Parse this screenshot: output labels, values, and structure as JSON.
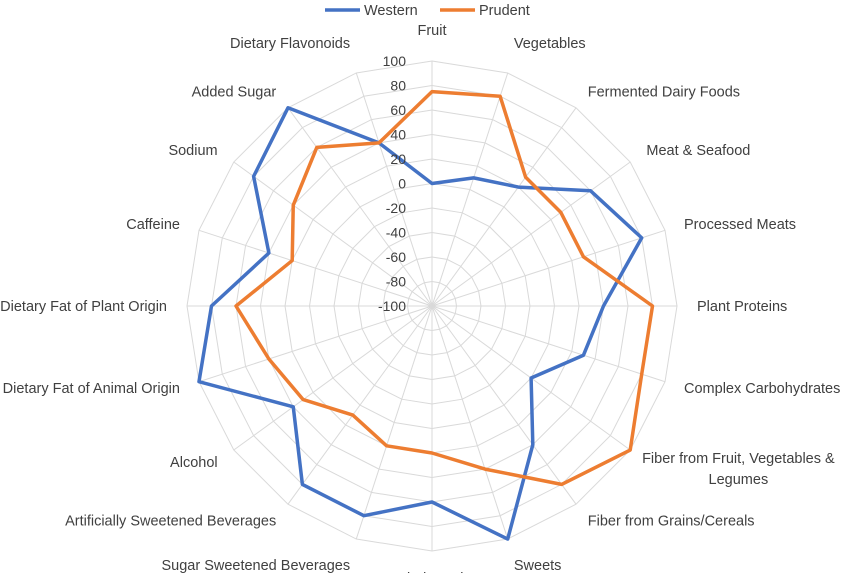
{
  "chart_data": {
    "type": "radar",
    "categories": [
      "Fruit",
      "Vegetables",
      "Fermented Dairy Foods",
      "Meat & Seafood",
      "Processed Meats",
      "Plant Proteins",
      "Complex Carbohydrates",
      "Fiber from Fruit, Vegetables & Legumes",
      "Fiber from Grains/Cereals",
      "Sweets",
      "Fried Foods",
      "Sugar Sweetened Beverages",
      "Artificially Sweetened Beverages",
      "Alcohol",
      "Dietary Fat of Animal Origin",
      "Dietary Fat of Plant Origin",
      "Caffeine",
      "Sodium",
      "Added Sugar",
      "Dietary Flavonoids"
    ],
    "series": [
      {
        "name": "Western",
        "color": "#4472C4",
        "values": [
          0,
          10,
          20,
          60,
          80,
          40,
          30,
          0,
          40,
          100,
          60,
          80,
          80,
          40,
          100,
          80,
          40,
          80,
          100,
          40
        ]
      },
      {
        "name": "Prudent",
        "color": "#ED7D31",
        "values": [
          75,
          80,
          30,
          30,
          30,
          80,
          80,
          100,
          80,
          40,
          20,
          20,
          10,
          30,
          40,
          60,
          20,
          40,
          60,
          40
        ]
      }
    ],
    "ticks": [
      100,
      80,
      60,
      40,
      20,
      0,
      -20,
      -40,
      -60,
      -80,
      -100
    ],
    "rlim": [
      -100,
      100
    ],
    "grid": true,
    "legend_position": "top"
  }
}
